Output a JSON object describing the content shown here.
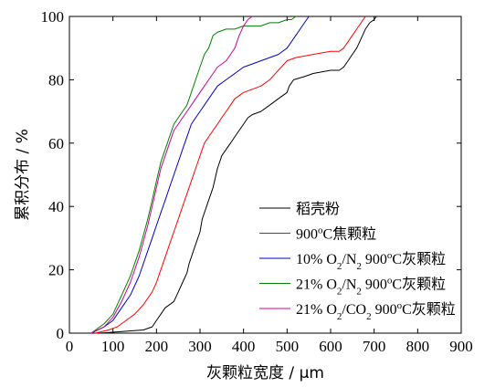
{
  "chart_data": {
    "type": "line",
    "xlabel": "灰颗粒宽度 / μm",
    "ylabel": "累积分布 / %",
    "xlim": [
      0,
      900
    ],
    "ylim": [
      0,
      100
    ],
    "xticks": [
      0,
      100,
      200,
      300,
      400,
      500,
      600,
      700,
      800,
      900
    ],
    "yticks": [
      0,
      20,
      40,
      60,
      80,
      100
    ],
    "grid": false,
    "legend_position": "lower-right",
    "series": [
      {
        "name": "稻壳粉",
        "legend_parts": [
          {
            "t": "稻壳粉"
          }
        ],
        "color": "#000000",
        "x": [
          70,
          120,
          170,
          190,
          200,
          210,
          220,
          230,
          240,
          250,
          260,
          270,
          275,
          280,
          290,
          300,
          305,
          310,
          320,
          330,
          340,
          350,
          360,
          370,
          380,
          390,
          400,
          410,
          420,
          440,
          460,
          480,
          500,
          505,
          515,
          540,
          560,
          600,
          620,
          630,
          640,
          650,
          660,
          670,
          680,
          690,
          700,
          705
        ],
        "y": [
          0,
          0.5,
          1,
          2,
          4,
          6,
          8,
          9,
          10,
          13,
          16,
          19,
          22,
          24,
          28,
          32,
          36,
          38,
          42,
          46,
          52,
          56,
          58,
          60,
          62,
          64,
          66,
          68,
          69,
          70,
          72,
          74,
          76,
          78,
          80,
          81,
          82,
          83,
          83,
          84,
          86,
          88,
          90,
          93,
          96,
          98,
          99,
          100
        ]
      },
      {
        "name": "900°C焦颗粒",
        "legend_parts": [
          {
            "t": "900"
          },
          {
            "t": "o",
            "sup": true
          },
          {
            "t": "C焦颗粒"
          }
        ],
        "color": "#ff0000",
        "x": [
          60,
          90,
          110,
          130,
          150,
          170,
          190,
          200,
          210,
          220,
          230,
          240,
          250,
          260,
          270,
          280,
          290,
          300,
          310,
          320,
          330,
          340,
          350,
          360,
          370,
          380,
          390,
          400,
          420,
          440,
          460,
          480,
          500,
          520,
          560,
          600,
          620,
          630,
          640,
          650,
          660,
          670,
          680
        ],
        "y": [
          0,
          1,
          2,
          4,
          6,
          9,
          13,
          16,
          20,
          24,
          28,
          32,
          36,
          40,
          44,
          48,
          52,
          56,
          60,
          62,
          64,
          66,
          68,
          70,
          72,
          74,
          75,
          76,
          77,
          78,
          80,
          83,
          86,
          87,
          88,
          89,
          89,
          90,
          92,
          94,
          96,
          98,
          100
        ]
      },
      {
        "name": "10% O2/N2 900°C灰颗粒",
        "legend_parts": [
          {
            "t": "10% O"
          },
          {
            "t": "2",
            "sub": true
          },
          {
            "t": "/N"
          },
          {
            "t": "2",
            "sub": true
          },
          {
            "t": " 900"
          },
          {
            "t": "o",
            "sup": true
          },
          {
            "t": "C灰颗粒"
          }
        ],
        "color": "#0000cc",
        "x": [
          50,
          80,
          100,
          120,
          140,
          160,
          180,
          190,
          200,
          210,
          220,
          230,
          240,
          250,
          260,
          270,
          280,
          290,
          300,
          310,
          320,
          330,
          340,
          360,
          380,
          400,
          420,
          440,
          460,
          480,
          500,
          520,
          540,
          550
        ],
        "y": [
          0,
          2,
          4,
          8,
          12,
          18,
          26,
          30,
          34,
          38,
          42,
          46,
          50,
          54,
          58,
          62,
          66,
          68,
          70,
          72,
          74,
          76,
          78,
          80,
          82,
          84,
          85,
          86,
          87,
          88,
          90,
          94,
          98,
          100
        ]
      },
      {
        "name": "21% O2/N2 900°C灰颗粒",
        "legend_parts": [
          {
            "t": "21% O"
          },
          {
            "t": "2",
            "sub": true
          },
          {
            "t": "/N"
          },
          {
            "t": "2",
            "sub": true
          },
          {
            "t": " 900"
          },
          {
            "t": "o",
            "sup": true
          },
          {
            "t": "C灰颗粒"
          }
        ],
        "color": "#008000",
        "x": [
          50,
          80,
          100,
          120,
          140,
          160,
          180,
          190,
          200,
          210,
          220,
          230,
          240,
          250,
          260,
          270,
          280,
          290,
          300,
          310,
          320,
          325,
          330,
          340,
          360,
          380,
          400,
          420,
          440,
          460,
          480,
          500,
          510,
          520
        ],
        "y": [
          0,
          3,
          6,
          12,
          18,
          26,
          36,
          42,
          48,
          54,
          58,
          62,
          66,
          68,
          70,
          72,
          76,
          80,
          84,
          88,
          90,
          92,
          94,
          95,
          96,
          96,
          97,
          97,
          97,
          98,
          98,
          99,
          99,
          100
        ]
      },
      {
        "name": "21% O2/CO2 900°C灰颗粒",
        "legend_parts": [
          {
            "t": "21% O"
          },
          {
            "t": "2",
            "sub": true
          },
          {
            "t": "/CO"
          },
          {
            "t": "2",
            "sub": true
          },
          {
            "t": " 900"
          },
          {
            "t": "o",
            "sup": true
          },
          {
            "t": "C灰颗粒"
          }
        ],
        "color": "#cc0099",
        "x": [
          50,
          80,
          100,
          120,
          140,
          160,
          180,
          190,
          200,
          210,
          220,
          230,
          240,
          250,
          260,
          270,
          280,
          290,
          300,
          310,
          320,
          330,
          340,
          350,
          360,
          370,
          380,
          390,
          400,
          410,
          420
        ],
        "y": [
          0,
          2,
          5,
          10,
          16,
          24,
          34,
          40,
          46,
          52,
          56,
          60,
          64,
          66,
          68,
          70,
          72,
          74,
          76,
          78,
          80,
          82,
          84,
          85,
          86,
          88,
          90,
          94,
          97,
          99,
          100
        ]
      }
    ]
  }
}
